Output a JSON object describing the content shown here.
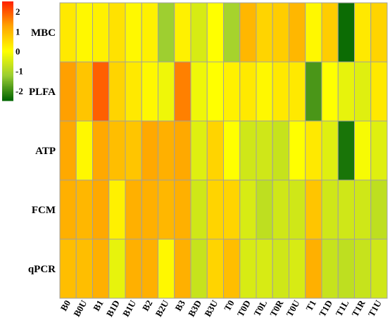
{
  "chart_data": {
    "type": "heatmap",
    "title": "",
    "xlabel": "",
    "ylabel": "",
    "x_categories": [
      "B0",
      "B0U",
      "B1",
      "B1D",
      "B1U",
      "B2",
      "B2U",
      "B3",
      "B3D",
      "B3U",
      "T0",
      "T0D",
      "T0L",
      "T0R",
      "T0U",
      "T1",
      "T1D",
      "T1L",
      "T1R",
      "T1U"
    ],
    "y_categories": [
      "MBC",
      "PLFA",
      "ATP",
      "FCM",
      "qPCR"
    ],
    "values": [
      [
        0.3,
        0.1,
        0.2,
        0.4,
        0.1,
        0.2,
        -1.2,
        0.2,
        -0.5,
        0.0,
        -1.1,
        1.0,
        0.6,
        0.7,
        1.0,
        0.1,
        0.7,
        -2.4,
        0.3,
        0.6
      ],
      [
        1.3,
        0.8,
        1.9,
        0.6,
        0.3,
        0.1,
        -0.2,
        1.6,
        -0.2,
        0.0,
        0.2,
        0.3,
        0.1,
        0.3,
        0.3,
        -1.9,
        0.0,
        -0.3,
        -0.4,
        0.3
      ],
      [
        1.2,
        0.1,
        1.2,
        0.9,
        0.8,
        1.2,
        1.1,
        1.2,
        -0.4,
        0.6,
        0.0,
        -0.6,
        -0.6,
        -0.7,
        0.0,
        0.3,
        -0.4,
        -2.3,
        -0.1,
        -0.4
      ],
      [
        1.1,
        1.0,
        1.2,
        0.2,
        1.1,
        1.1,
        1.0,
        1.1,
        -0.6,
        0.6,
        0.6,
        -0.5,
        -0.8,
        -0.6,
        -0.6,
        0.8,
        -0.6,
        -0.6,
        -0.6,
        -0.8
      ],
      [
        0.9,
        0.9,
        1.1,
        -0.3,
        1.1,
        1.1,
        0.1,
        1.1,
        -0.7,
        0.6,
        0.9,
        -0.5,
        -0.5,
        -0.6,
        -0.5,
        1.1,
        -0.7,
        -0.8,
        -0.7,
        -0.6
      ]
    ],
    "scale": {
      "min": -2.5,
      "max": 2.5,
      "ticks": [
        2,
        1,
        0,
        -1,
        -2
      ],
      "colors": [
        "#006400",
        "#9acd32",
        "#ffff00",
        "#ffa500",
        "#ff2000"
      ]
    },
    "grid": true,
    "legend": "top-left"
  }
}
